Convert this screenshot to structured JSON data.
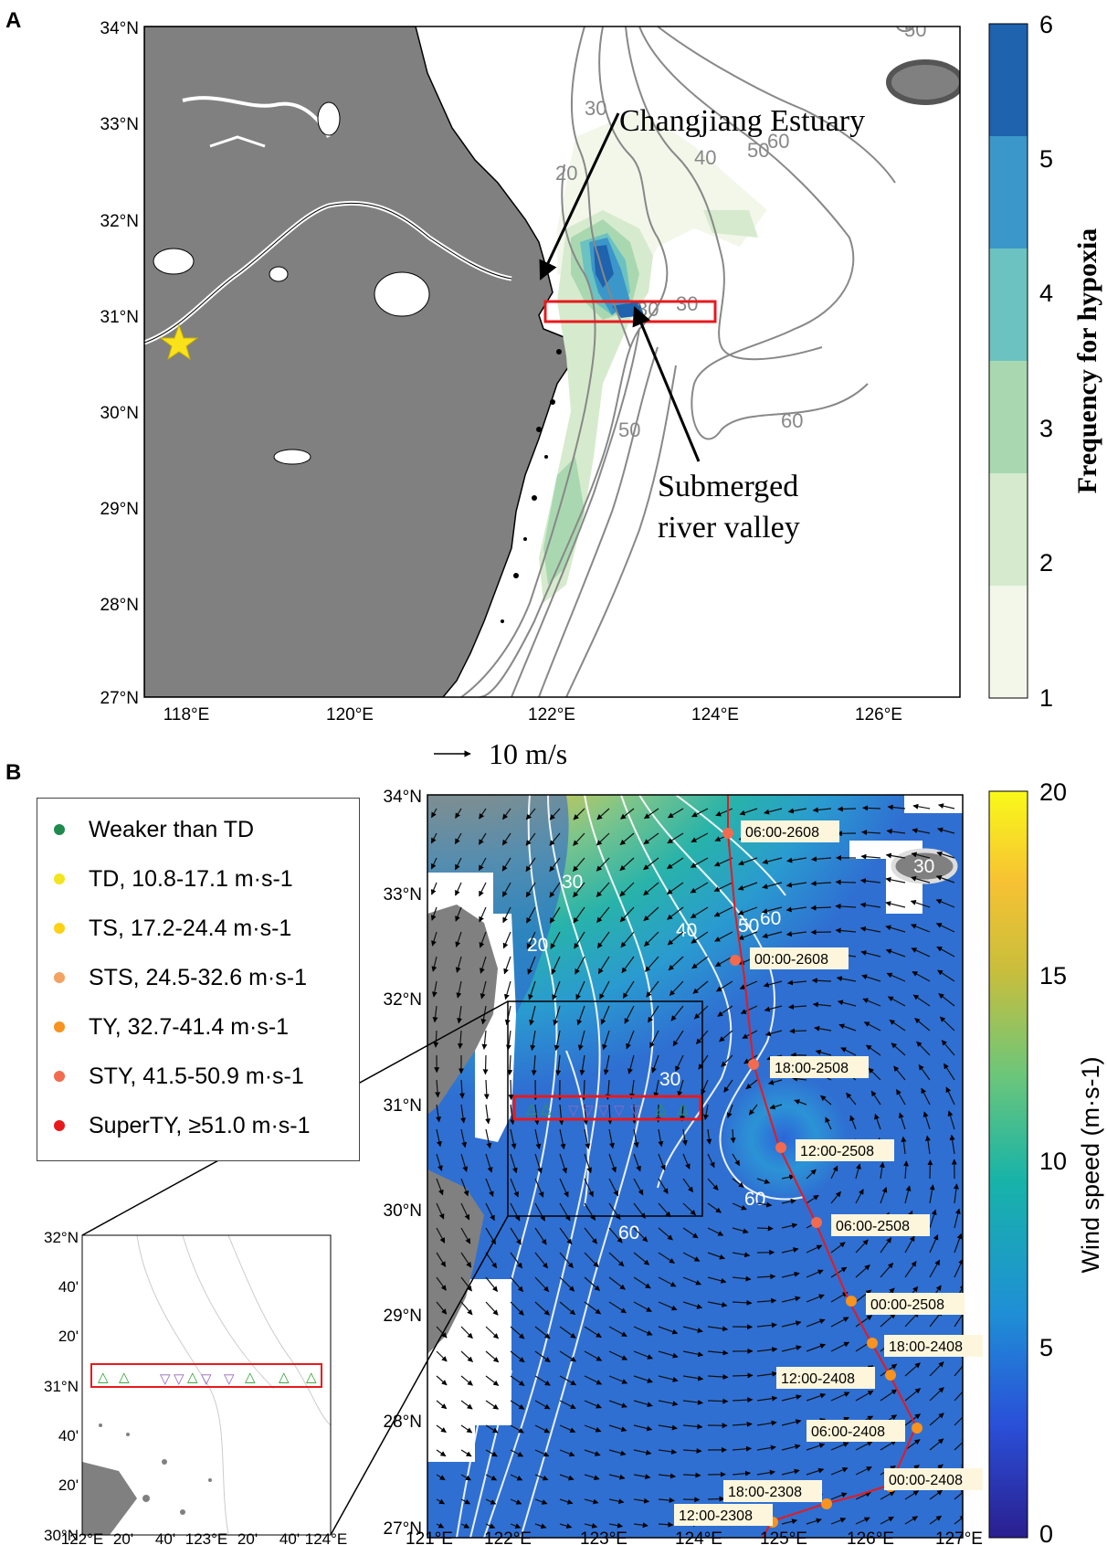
{
  "panel_a": {
    "label": "A",
    "lat_ticks": [
      "34°N",
      "33°N",
      "32°N",
      "31°N",
      "30°N",
      "29°N",
      "28°N",
      "27°N"
    ],
    "lon_ticks": [
      "118°E",
      "120°E",
      "122°E",
      "124°E",
      "126°E"
    ],
    "isobaths": [
      "20",
      "30",
      "30",
      "40",
      "50",
      "60",
      "50",
      "60",
      "30",
      "50"
    ],
    "annotations": {
      "estuary": "Changjiang Estuary",
      "valley_line1": "Submerged",
      "valley_line2": "river valley"
    },
    "colorbar": {
      "title": "Frequency for hypoxia",
      "ticks": [
        "1",
        "2",
        "3",
        "4",
        "5",
        "6"
      ],
      "colors": [
        "#f2f7ea",
        "#d6ebcd",
        "#a9d8b0",
        "#6cc2c0",
        "#3b97c9",
        "#1f62ad"
      ]
    }
  },
  "panel_b": {
    "label": "B",
    "scale_arrow": "10 m/s",
    "lat_ticks": [
      "34°N",
      "33°N",
      "32°N",
      "31°N",
      "30°N",
      "29°N",
      "28°N",
      "27°N"
    ],
    "lon_ticks": [
      "121°E",
      "122°E",
      "123°E",
      "124°E",
      "125°E",
      "126°E",
      "127°E"
    ],
    "isobaths": [
      "30",
      "20",
      "40",
      "50",
      "60",
      "30",
      "60",
      "60",
      "30"
    ],
    "legend": [
      {
        "label": "Weaker than TD",
        "color": "#1f8a4c"
      },
      {
        "label": "TD, 10.8-17.1 m·s-1",
        "color": "#f2e51d"
      },
      {
        "label": "TS, 17.2-24.4 m·s-1",
        "color": "#fcd116"
      },
      {
        "label": "STS, 24.5-32.6 m·s-1",
        "color": "#f4a261"
      },
      {
        "label": "TY, 32.7-41.4 m·s-1",
        "color": "#f7931e"
      },
      {
        "label": "STY, 41.5-50.9 m·s-1",
        "color": "#f26b4e"
      },
      {
        "label": "SuperTY, ≥51.0 m·s-1",
        "color": "#e8191c"
      }
    ],
    "track_labels": [
      "06:00-2608",
      "00:00-2608",
      "18:00-2508",
      "12:00-2508",
      "06:00-2508",
      "00:00-2508",
      "18:00-2408",
      "12:00-2408",
      "06:00-2408",
      "00:00-2408",
      "18:00-2308",
      "12:00-2308"
    ],
    "colorbar": {
      "title": "Wind speed (m·s-1)",
      "ticks": [
        "0",
        "5",
        "10",
        "15",
        "20"
      ]
    },
    "inset": {
      "lat_ticks": [
        "32°N",
        "40'",
        "20'",
        "31°N",
        "40'",
        "20'",
        "30°N"
      ],
      "lon_ticks": [
        "122°E",
        "20'",
        "40'",
        "123°E",
        "20'",
        "40'",
        "124°E"
      ]
    }
  }
}
